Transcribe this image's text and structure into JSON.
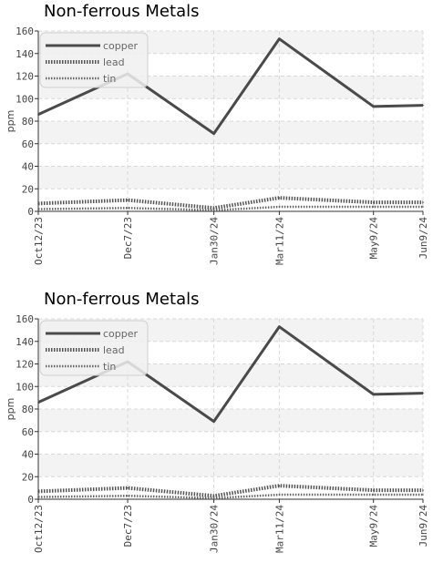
{
  "chart_data": [
    {
      "type": "line",
      "title": "Non-ferrous Metals",
      "ylabel": "ppm",
      "xlabel": "",
      "ylim": [
        0,
        160
      ],
      "yticks": [
        0,
        20,
        40,
        60,
        80,
        100,
        120,
        140,
        160
      ],
      "categories": [
        "Oct12/23",
        "Dec7/23",
        "Jan30/24",
        "Mar11/24",
        "May9/24",
        "Jun9/24"
      ],
      "x": [
        "2023-10-12",
        "2023-12-07",
        "2024-01-30",
        "2024-03-11",
        "2024-05-09",
        "2024-06-09"
      ],
      "grid": true,
      "legend_position": "top-left",
      "series": [
        {
          "name": "copper",
          "values": [
            86,
            122,
            69,
            153,
            93,
            94
          ],
          "color": "#4a4a4a",
          "style": "solid"
        },
        {
          "name": "lead",
          "values": [
            7,
            10,
            3,
            12,
            8,
            8
          ],
          "color": "#555555",
          "style": "dotted-thick"
        },
        {
          "name": "tin",
          "values": [
            2,
            3,
            1,
            4,
            4,
            4
          ],
          "color": "#666666",
          "style": "dotted-thin"
        }
      ]
    },
    {
      "type": "line",
      "title": "Non-ferrous Metals",
      "ylabel": "ppm",
      "xlabel": "",
      "ylim": [
        0,
        160
      ],
      "yticks": [
        0,
        20,
        40,
        60,
        80,
        100,
        120,
        140,
        160
      ],
      "categories": [
        "Oct12/23",
        "Dec7/23",
        "Jan30/24",
        "Mar11/24",
        "May9/24",
        "Jun9/24"
      ],
      "x": [
        "2023-10-12",
        "2023-12-07",
        "2024-01-30",
        "2024-03-11",
        "2024-05-09",
        "2024-06-09"
      ],
      "grid": true,
      "legend_position": "top-left",
      "series": [
        {
          "name": "copper",
          "values": [
            86,
            122,
            69,
            153,
            93,
            94
          ],
          "color": "#4a4a4a",
          "style": "solid"
        },
        {
          "name": "lead",
          "values": [
            7,
            10,
            3,
            12,
            8,
            8
          ],
          "color": "#555555",
          "style": "dotted-thick"
        },
        {
          "name": "tin",
          "values": [
            2,
            3,
            1,
            4,
            4,
            4
          ],
          "color": "#666666",
          "style": "dotted-thin"
        }
      ]
    }
  ]
}
